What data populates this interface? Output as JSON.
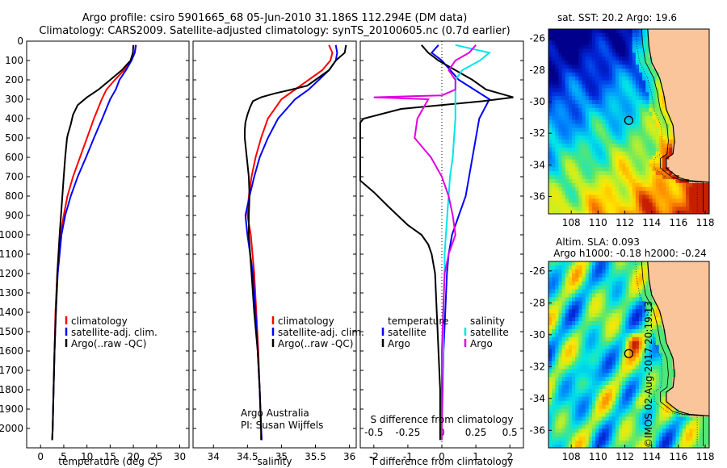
{
  "title": {
    "line1": "Argo profile: csiro 5901665_68 05-Jun-2010 31.186S 112.294E (DM data)",
    "line2": "Climatology: CARS2009. Satellite-adjusted climatology: synTS_20100605.nc (0.7d earlier)"
  },
  "colors": {
    "climatology": "#ff0000",
    "satellite": "#0000ff",
    "argo": "#000000",
    "sal_satellite": "#00e5e5",
    "sal_argo": "#e000e0",
    "land": "#fbc59c"
  },
  "footer": {
    "agency": "Argo Australia",
    "pi": "PI: Susan Wijffels",
    "stamp": "©IMOS 02-Aug-2017 20:19:13"
  },
  "chart_data": [
    {
      "type": "line",
      "id": "temperature",
      "xlabel": "temperature (deg C)",
      "xlim": [
        -3,
        32
      ],
      "xticks": [
        0,
        5,
        10,
        15,
        20,
        25,
        30
      ],
      "ylim": [
        2100,
        0
      ],
      "yticks": [
        0,
        100,
        200,
        300,
        400,
        500,
        600,
        700,
        800,
        900,
        1000,
        1100,
        1200,
        1300,
        1400,
        1500,
        1600,
        1700,
        1800,
        1900,
        2000
      ],
      "legend": [
        "climatology",
        "satellite-adj. clim.",
        "Argo(..raw -QC)"
      ],
      "series": [
        {
          "name": "climatology",
          "y": [
            20,
            60,
            100,
            150,
            200,
            250,
            300,
            400,
            500,
            600,
            700,
            800,
            900,
            1000,
            1200,
            1400,
            1600,
            1800,
            2000,
            2060
          ],
          "x": [
            20.6,
            20.3,
            19.5,
            18.0,
            16.0,
            14.2,
            13.2,
            11.5,
            10.0,
            8.5,
            7.0,
            5.8,
            5.0,
            4.3,
            3.6,
            3.2,
            3.0,
            2.8,
            2.6,
            2.5
          ]
        },
        {
          "name": "satellite-adj. clim.",
          "y": [
            20,
            60,
            100,
            150,
            200,
            250,
            300,
            400,
            500,
            600,
            700,
            800,
            900,
            1000,
            1200,
            1400,
            1600,
            1800,
            2000,
            2060
          ],
          "x": [
            20.5,
            20.3,
            19.6,
            18.4,
            17.0,
            16.2,
            15.0,
            13.3,
            11.5,
            9.8,
            8.0,
            6.5,
            5.3,
            4.5,
            3.7,
            3.3,
            3.0,
            2.8,
            2.6,
            2.5
          ]
        },
        {
          "name": "Argo(..raw -QC)",
          "y": [
            20,
            60,
            100,
            150,
            200,
            250,
            290,
            330,
            380,
            430,
            480,
            500,
            600,
            700,
            800,
            900,
            1000,
            1200,
            1400,
            1600,
            1800,
            2000,
            2060
          ],
          "x": [
            20.0,
            19.9,
            19.4,
            17.5,
            15.0,
            12.5,
            10.0,
            8.0,
            7.0,
            6.5,
            5.9,
            5.7,
            5.3,
            5.0,
            4.7,
            4.4,
            4.1,
            3.6,
            3.3,
            3.0,
            2.8,
            2.6,
            2.5
          ]
        }
      ]
    },
    {
      "type": "line",
      "id": "salinity",
      "xlabel": "salinity",
      "xlim": [
        33.7,
        36.1
      ],
      "xticks": [
        34,
        34.5,
        35,
        35.5,
        36
      ],
      "ylim": [
        2100,
        0
      ],
      "legend": [
        "climatology",
        "satellite-adj. clim.",
        "Argo(..raw -QC)"
      ],
      "series": [
        {
          "name": "climatology",
          "y": [
            20,
            60,
            100,
            150,
            200,
            250,
            300,
            400,
            500,
            600,
            700,
            800,
            900,
            1000,
            1200,
            1400,
            1600,
            1800,
            2000,
            2060
          ],
          "x": [
            35.7,
            35.75,
            35.72,
            35.6,
            35.4,
            35.2,
            35.0,
            34.8,
            34.7,
            34.62,
            34.56,
            34.52,
            34.5,
            34.55,
            34.6,
            34.63,
            34.66,
            34.68,
            34.7,
            34.71
          ]
        },
        {
          "name": "satellite-adj. clim.",
          "y": [
            20,
            60,
            100,
            150,
            200,
            250,
            300,
            400,
            500,
            600,
            700,
            800,
            900,
            1000,
            1200,
            1400,
            1600,
            1800,
            2000,
            2060
          ],
          "x": [
            35.8,
            35.82,
            35.8,
            35.7,
            35.55,
            35.4,
            35.2,
            34.95,
            34.8,
            34.68,
            34.6,
            34.53,
            34.47,
            34.5,
            34.58,
            34.62,
            34.65,
            34.68,
            34.7,
            34.71
          ]
        },
        {
          "name": "Argo(..raw -QC)",
          "y": [
            20,
            60,
            100,
            150,
            200,
            230,
            250,
            270,
            290,
            310,
            340,
            380,
            420,
            460,
            500,
            600,
            700,
            800,
            900,
            1000,
            1200,
            1400,
            1600,
            1800,
            2000,
            2060
          ],
          "x": [
            35.95,
            35.93,
            35.8,
            35.7,
            35.5,
            35.38,
            35.15,
            34.9,
            34.7,
            34.58,
            34.54,
            34.5,
            34.47,
            34.46,
            34.46,
            34.49,
            34.52,
            34.53,
            34.52,
            34.52,
            34.56,
            34.6,
            34.65,
            34.68,
            34.7,
            34.7
          ]
        }
      ]
    },
    {
      "type": "line",
      "id": "differences",
      "xlabel": "T difference from climatology",
      "xlabel_top": "S difference from climatology",
      "xlim": [
        -2.4,
        2.4
      ],
      "xticks": [
        -2,
        -1,
        0,
        1,
        2
      ],
      "s_ticks": [
        "-0.5",
        "-0.25",
        "0",
        "0.25",
        "0.5"
      ],
      "ylim": [
        2100,
        0
      ],
      "legend_left": {
        "header": "temperature",
        "items": [
          "satellite",
          "Argo"
        ]
      },
      "legend_right": {
        "header": "salinity",
        "items": [
          "satellite",
          "Argo"
        ]
      },
      "series": [
        {
          "name": "T satellite",
          "y": [
            20,
            60,
            100,
            200,
            300,
            400,
            500,
            600,
            700,
            800,
            900,
            1000,
            1100,
            1200,
            1400,
            1600,
            1800,
            2000,
            2060
          ],
          "x": [
            -0.1,
            -0.3,
            0.0,
            0.5,
            1.4,
            1.1,
            1.0,
            0.9,
            0.8,
            0.7,
            0.5,
            0.3,
            0.2,
            0.15,
            0.1,
            0.05,
            0.02,
            0.0,
            0.0
          ]
        },
        {
          "name": "T Argo",
          "y": [
            20,
            60,
            100,
            150,
            200,
            250,
            290,
            310,
            350,
            400,
            420,
            720,
            780,
            850,
            950,
            1000,
            1050,
            1100,
            1150,
            1200,
            1400,
            1600,
            1800,
            2000,
            2060
          ],
          "x": [
            -0.6,
            -0.4,
            -0.1,
            0.4,
            0.9,
            1.3,
            2.1,
            1.2,
            -1.2,
            -2.3,
            -2.4,
            -2.4,
            -2.0,
            -1.6,
            -1.0,
            -0.6,
            -0.4,
            -0.3,
            -0.25,
            -0.2,
            -0.15,
            -0.1,
            -0.05,
            -0.05,
            -0.05
          ]
        },
        {
          "name": "S satellite",
          "y": [
            20,
            60,
            100,
            150,
            200,
            300,
            400,
            500,
            600,
            700,
            800,
            900,
            1000,
            1100,
            1200,
            1400,
            1600,
            1800,
            2000,
            2060
          ],
          "x": [
            0.1,
            0.35,
            0.28,
            0.15,
            0.1,
            0.1,
            0.1,
            0.09,
            0.08,
            0.06,
            0.05,
            0.04,
            0.03,
            0.02,
            0.02,
            0.01,
            0.01,
            0.0,
            0.0,
            0.0
          ]
        },
        {
          "name": "S Argo",
          "y": [
            20,
            60,
            100,
            150,
            200,
            250,
            280,
            290,
            300,
            400,
            500,
            600,
            700,
            800,
            900,
            1000,
            1100,
            1200,
            1400,
            1600,
            1800,
            2000,
            2060
          ],
          "x": [
            0.25,
            0.2,
            0.1,
            0.05,
            0.1,
            0.1,
            0.0,
            -0.5,
            -0.1,
            -0.18,
            -0.2,
            -0.08,
            0.0,
            0.05,
            0.08,
            0.1,
            0.05,
            0.02,
            0.01,
            0.0,
            0.0,
            0.0,
            0.0
          ]
        }
      ]
    },
    {
      "type": "heatmap",
      "id": "sst_map",
      "title": "sat. SST: 20.2  Argo: 19.6",
      "xticks": [
        108,
        110,
        112,
        114,
        116,
        118
      ],
      "yticks": [
        -26,
        -28,
        -30,
        -32,
        -34,
        -36
      ],
      "xlim": [
        106.3,
        118.3
      ],
      "ylim": [
        -37.1,
        -25.4
      ],
      "profile_location": {
        "lon": 112.294,
        "lat": -31.186
      }
    },
    {
      "type": "heatmap",
      "id": "sla_map",
      "title_line1": "Altim. SLA: 0.093",
      "title_line2": "Argo h1000: -0.18  h2000: -0.24",
      "xticks": [
        108,
        110,
        112,
        114,
        116,
        118
      ],
      "yticks": [
        -26,
        -28,
        -30,
        -32,
        -34,
        -36
      ],
      "xlim": [
        106.3,
        118.3
      ],
      "ylim": [
        -37.1,
        -25.4
      ],
      "profile_location": {
        "lon": 112.294,
        "lat": -31.186
      }
    }
  ]
}
